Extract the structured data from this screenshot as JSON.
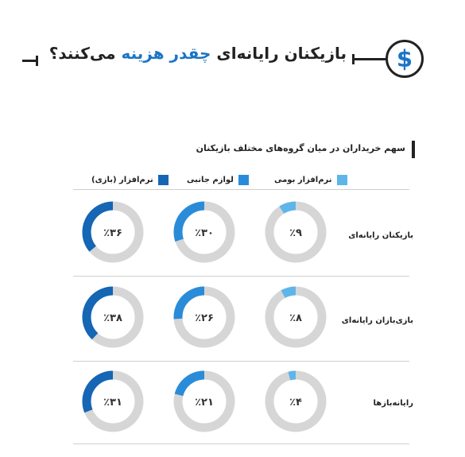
{
  "header": {
    "title_prefix": "بازیکنان رایانه‌ای",
    "title_accent": "چقدر هزینه",
    "title_suffix": "می‌کنند؟",
    "icon": "dollar-circle-icon",
    "icon_glyph": "$"
  },
  "chart_data": {
    "type": "donut-grid",
    "title": "سهم خریداران در میان گروه‌های مختلف بازیکنان",
    "series": [
      {
        "name": "نرم‌افزار بومی",
        "color": "#5eb5ea"
      },
      {
        "name": "لوازم جانبی",
        "color": "#2a8cd8"
      },
      {
        "name": "نرم‌افزار (بازی)",
        "color": "#1566b4"
      }
    ],
    "categories": [
      "بازیکنان رایانه‌ای",
      "بازی‌بازان رایانه‌ای",
      "رایانه‌بازها"
    ],
    "values": [
      [
        9,
        30,
        36
      ],
      [
        8,
        26,
        38
      ],
      [
        4,
        21,
        31
      ]
    ],
    "labels": [
      [
        "٪۹",
        "٪۳۰",
        "٪۳۶"
      ],
      [
        "٪۸",
        "٪۲۶",
        "٪۳۸"
      ],
      [
        "٪۴",
        "٪۲۱",
        "٪۳۱"
      ]
    ],
    "track_color": "#d6d6d6",
    "ylim": [
      0,
      100
    ]
  }
}
